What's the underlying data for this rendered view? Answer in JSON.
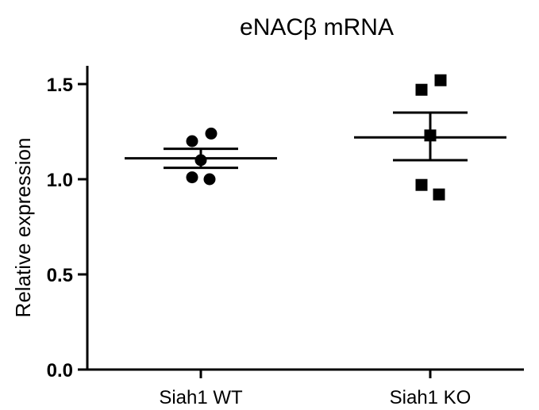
{
  "chart_data": {
    "type": "scatter",
    "title": "eNACβ mRNA",
    "xlabel": "",
    "ylabel": "Relative expression",
    "categories": [
      "Siah1 WT",
      "Siah1 KO"
    ],
    "ylim": [
      0.0,
      1.6
    ],
    "yticks": [
      "0.0",
      "0.5",
      "1.0",
      "1.5"
    ],
    "grid": false,
    "legend": "none",
    "series": [
      {
        "category": "Siah1 WT",
        "marker": "circle",
        "points": [
          1.24,
          1.2,
          1.1,
          1.01,
          1.0
        ],
        "mean": 1.11,
        "sem_upper": 1.16,
        "sem_lower": 1.06
      },
      {
        "category": "Siah1 KO",
        "marker": "square",
        "points": [
          1.52,
          1.47,
          1.23,
          0.97,
          0.92
        ],
        "mean": 1.22,
        "sem_upper": 1.35,
        "sem_lower": 1.1
      }
    ],
    "colors": {
      "marks": "#000000",
      "axes": "#000000"
    }
  }
}
